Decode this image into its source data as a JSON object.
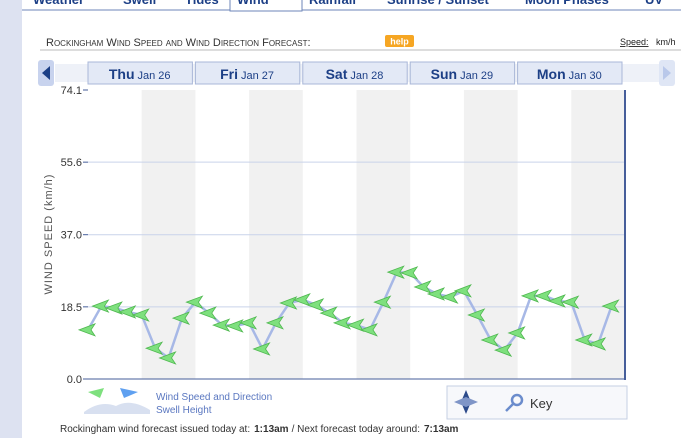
{
  "tabs": [
    "Weather",
    "Swell",
    "Tides",
    "Wind",
    "Rainfall",
    "Sunrise / Sunset",
    "Moon Phases",
    "UV"
  ],
  "help": "help",
  "speed_label": "Speed:",
  "speed_unit": "km/h",
  "key": "Key",
  "footer": {
    "issued_text": "Rockingham wind forecast issued today at:",
    "issued_time": "1:13am",
    "next_text": "/ Next forecast today around:",
    "next_time": "7:13am"
  },
  "chart_data": {
    "type": "line",
    "title": "Rockingham Wind Speed and Wind Direction Forecast:",
    "y_label": "WIND SPEED (km/h)",
    "days": [
      {
        "day": "Thu",
        "date": "Jan 26"
      },
      {
        "day": "Fri",
        "date": "Jan 27"
      },
      {
        "day": "Sat",
        "date": "Jan 28"
      },
      {
        "day": "Sun",
        "date": "Jan 29"
      },
      {
        "day": "Mon",
        "date": "Jan 30"
      }
    ],
    "ylim": [
      0,
      74.1
    ],
    "yticks": [
      {
        "value": 0,
        "label": "0.0"
      },
      18.5,
      {
        "value": 37,
        "label": "37.0"
      },
      55.6,
      74.1
    ],
    "grid": true,
    "color": "#a7b8e6",
    "arrow_color": "#7ee07e",
    "legend": [
      "Wind Speed and Direction",
      "Swell Height"
    ],
    "values": [
      12.6,
      18.7,
      18.2,
      17.2,
      16.4,
      7.9,
      5.4,
      15.6,
      19.7,
      16.9,
      13.8,
      13.6,
      14.4,
      7.7,
      14.4,
      19.5,
      20.3,
      19.0,
      16.9,
      14.4,
      13.8,
      12.6,
      19.7,
      27.4,
      27.2,
      23.6,
      21.8,
      21.0,
      22.6,
      16.4,
      10.0,
      7.4,
      11.8,
      21.3,
      21.3,
      20.0,
      19.7,
      10.0,
      9.0,
      18.7
    ]
  }
}
